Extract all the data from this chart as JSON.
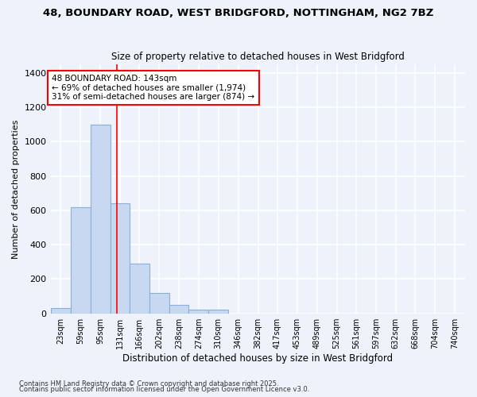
{
  "title1": "48, BOUNDARY ROAD, WEST BRIDGFORD, NOTTINGHAM, NG2 7BZ",
  "title2": "Size of property relative to detached houses in West Bridgford",
  "xlabel": "Distribution of detached houses by size in West Bridgford",
  "ylabel": "Number of detached properties",
  "footnote1": "Contains HM Land Registry data © Crown copyright and database right 2025.",
  "footnote2": "Contains public sector information licensed under the Open Government Licence v3.0.",
  "bins": [
    23,
    59,
    95,
    131,
    166,
    202,
    238,
    274,
    310,
    346,
    382,
    417,
    453,
    489,
    525,
    561,
    597,
    632,
    668,
    704,
    740
  ],
  "heights": [
    30,
    620,
    1100,
    640,
    290,
    120,
    50,
    20,
    20,
    0,
    0,
    0,
    0,
    0,
    0,
    0,
    0,
    0,
    0,
    0,
    0
  ],
  "bar_color": "#c8d8f0",
  "bar_edge_color": "#8ab0d8",
  "vline_x": 143,
  "vline_color": "red",
  "annotation_text": "48 BOUNDARY ROAD: 143sqm\n← 69% of detached houses are smaller (1,974)\n31% of semi-detached houses are larger (874) →",
  "annotation_box_color": "white",
  "annotation_box_edge": "red",
  "bg_color": "#eef2fb",
  "grid_color": "white",
  "ylim": [
    0,
    1450
  ],
  "yticks": [
    0,
    200,
    400,
    600,
    800,
    1000,
    1200,
    1400
  ]
}
